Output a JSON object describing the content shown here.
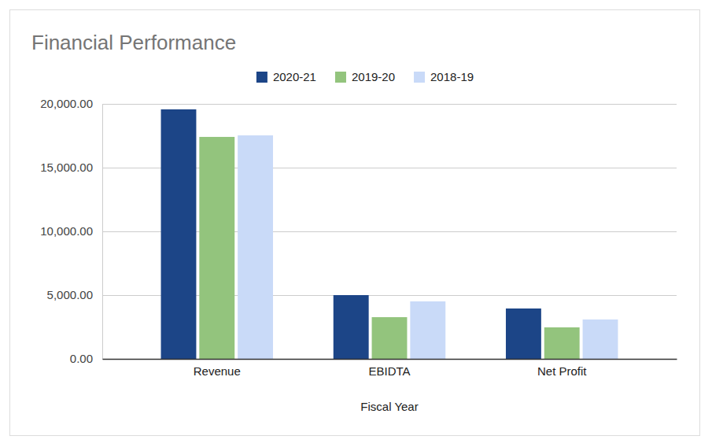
{
  "chart_data": {
    "type": "bar",
    "title": "Financial Performance",
    "x_label": "Fiscal Year",
    "categories": [
      "Revenue",
      "EBIDTA",
      "Net Profit"
    ],
    "series": [
      {
        "name": "2020-21",
        "color": "#1c4587",
        "values": [
          19570,
          5000,
          3950
        ]
      },
      {
        "name": "2019-20",
        "color": "#93c47d",
        "values": [
          17410,
          3270,
          2470
        ]
      },
      {
        "name": "2018-19",
        "color": "#c9daf8",
        "values": [
          17530,
          4510,
          3090
        ]
      }
    ],
    "ylim": [
      0,
      20000
    ],
    "yticks": [
      {
        "value": 0,
        "label": "0.00"
      },
      {
        "value": 5000,
        "label": "5,000.00"
      },
      {
        "value": 10000,
        "label": "10,000.00"
      },
      {
        "value": 15000,
        "label": "15,000.00"
      },
      {
        "value": 20000,
        "label": "20,000.00"
      }
    ],
    "grid": true,
    "legend": "top"
  }
}
